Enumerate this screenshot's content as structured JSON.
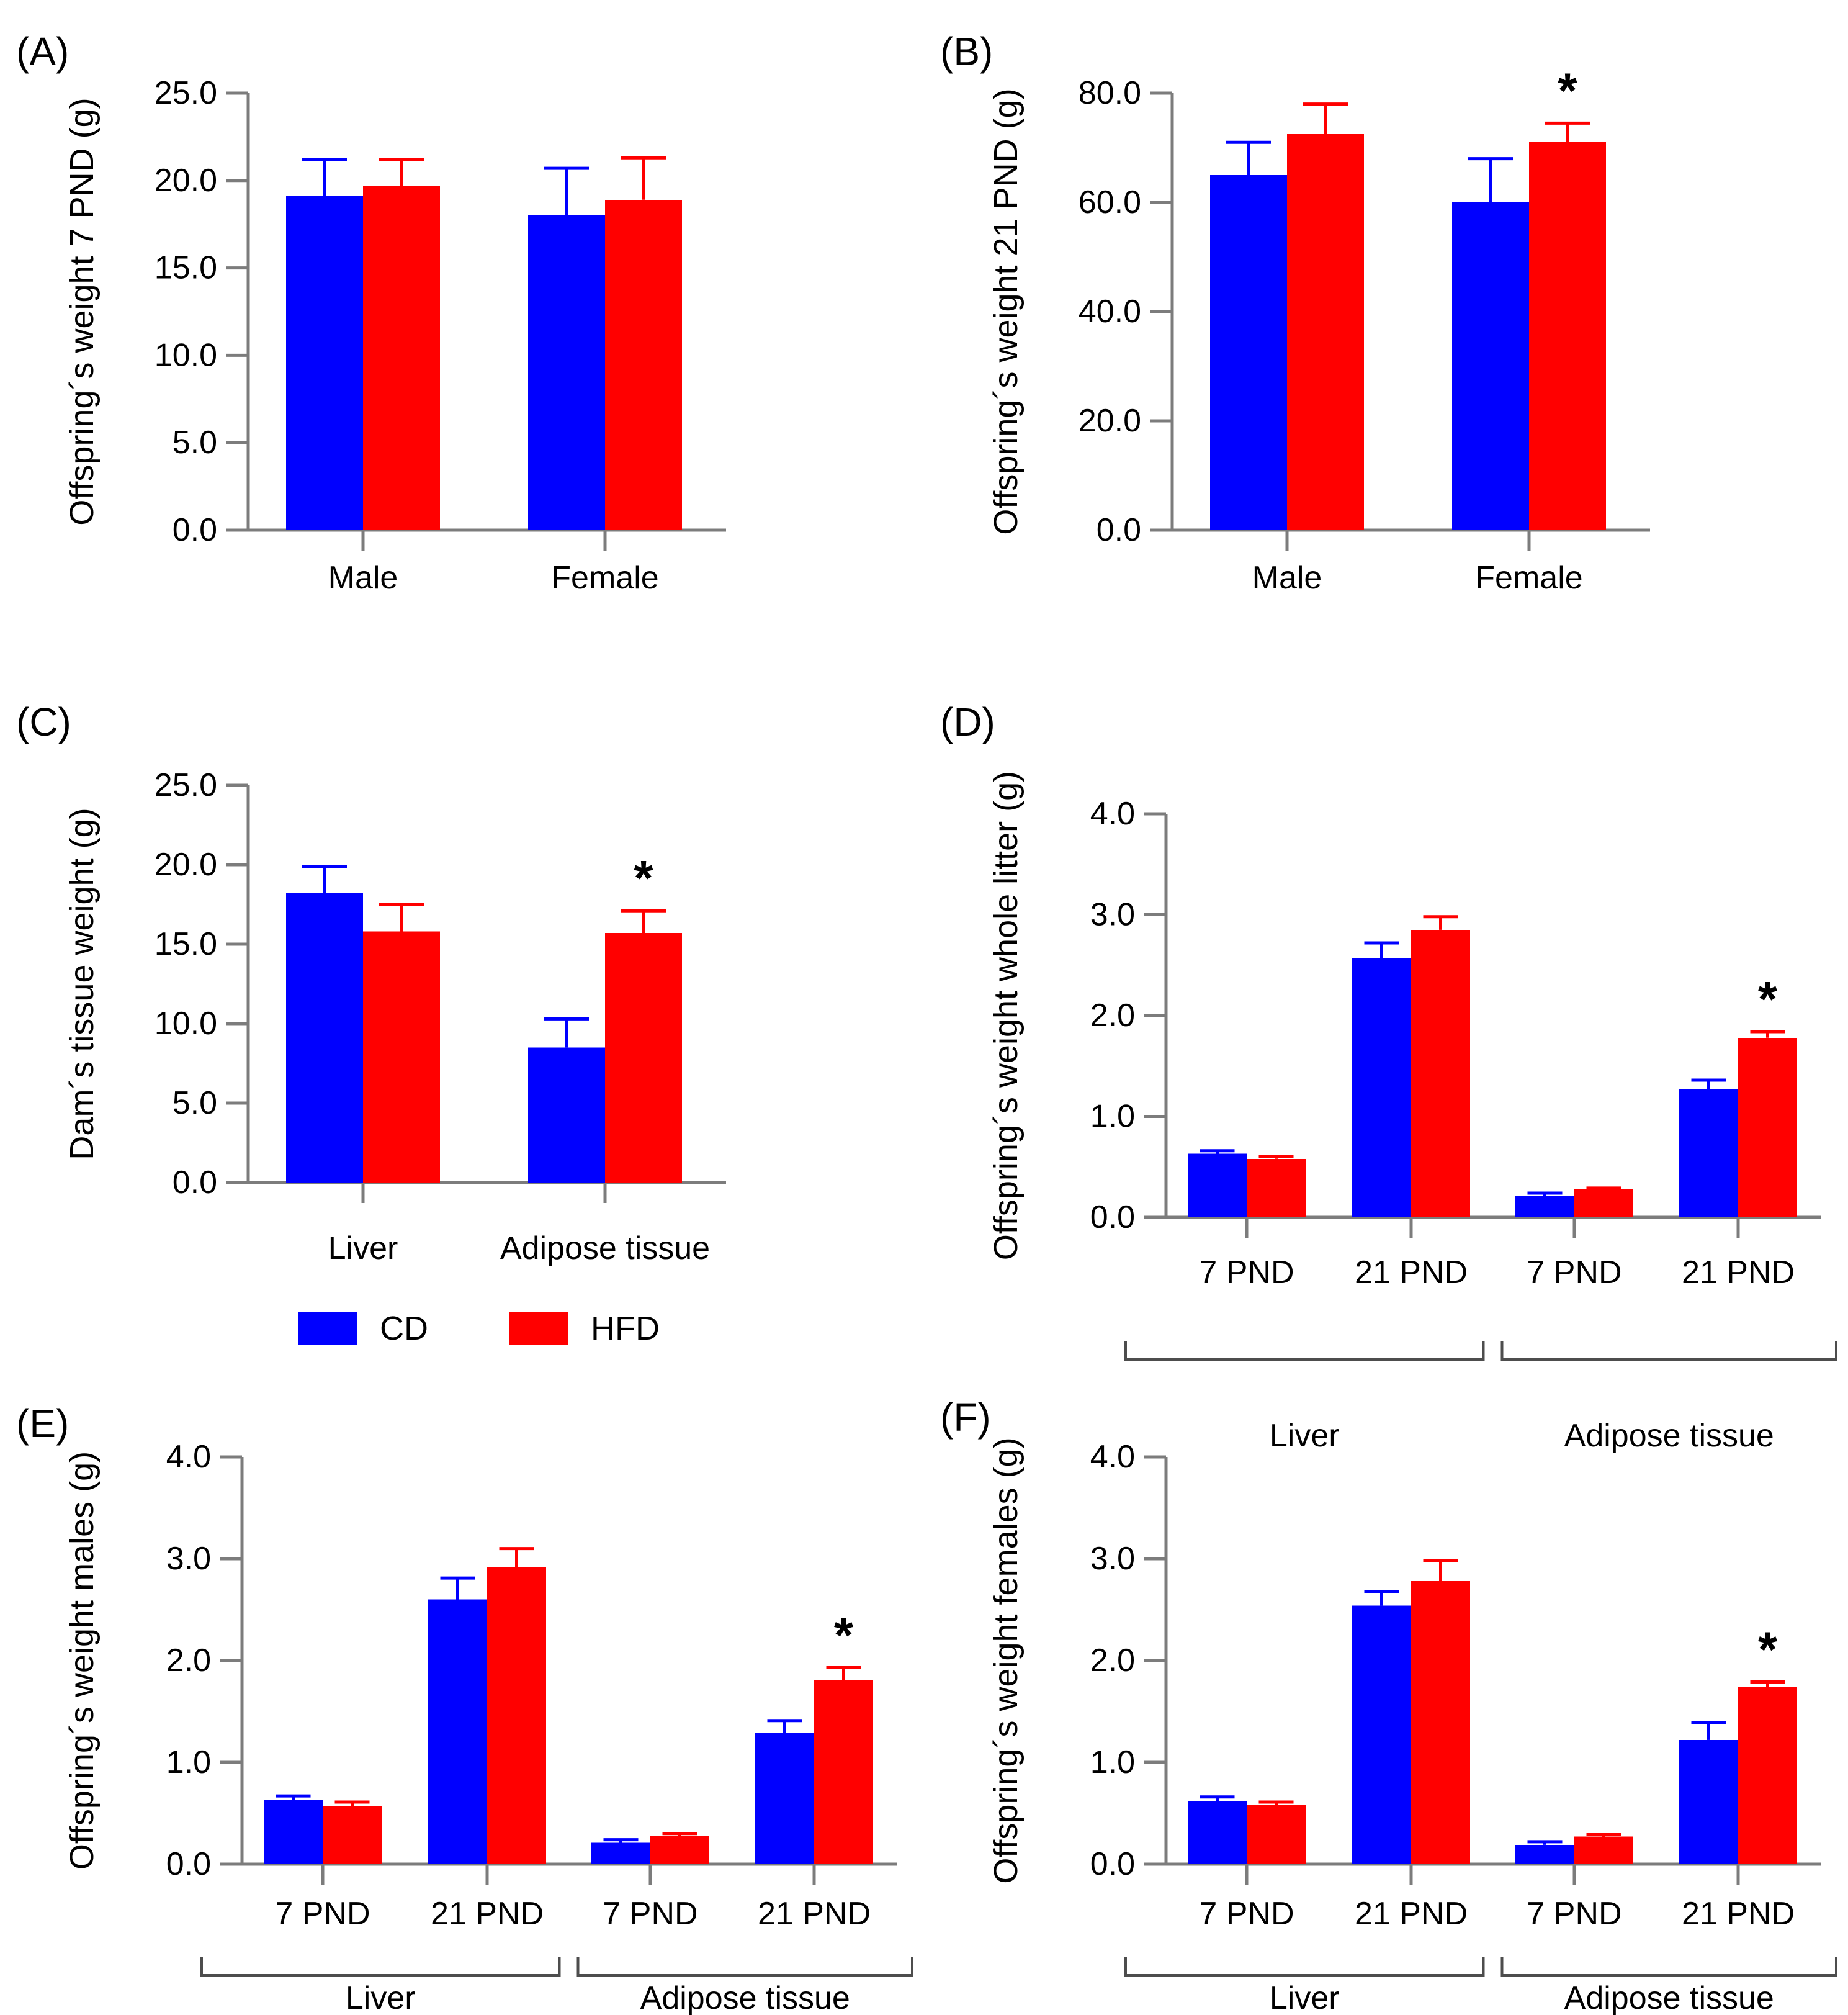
{
  "colors": {
    "cd_blue": "#0000ff",
    "hfd_red": "#ff0000",
    "axis_gray": "#7c7c7c",
    "bracket_gray": "#4d4d4d",
    "text_black": "#000000"
  },
  "significance_marker": "*",
  "legend": {
    "items": [
      {
        "label": "CD",
        "color": "#0000ff"
      },
      {
        "label": "HFD",
        "color": "#ff0000"
      }
    ]
  },
  "chart_data": [
    {
      "type": "bar",
      "panel_label": "(A)",
      "ylabel": "Offspring´s weight 7 PND (g)",
      "xlabel": "",
      "ylim": [
        0,
        25
      ],
      "yticks": {
        "values": [
          0,
          5,
          10,
          15,
          20,
          25
        ],
        "labels": [
          "0.0",
          "5.0",
          "10.0",
          "15.0",
          "20.0",
          "25.0"
        ]
      },
      "categories": [
        "Male",
        "Female"
      ],
      "series": [
        {
          "name": "CD",
          "color": "#0000ff",
          "values": [
            19.1,
            18.0
          ],
          "errors": [
            2.1,
            2.7
          ]
        },
        {
          "name": "HFD",
          "color": "#ff0000",
          "values": [
            19.7,
            18.9
          ],
          "errors": [
            1.5,
            2.4
          ]
        }
      ],
      "asterisks": [],
      "group_brackets": [],
      "show_legend": false,
      "grid": false,
      "legend_position": "none"
    },
    {
      "type": "bar",
      "panel_label": "(B)",
      "ylabel": "Offspring´s weight 21 PND (g)",
      "xlabel": "",
      "ylim": [
        0,
        80
      ],
      "yticks": {
        "values": [
          0,
          20,
          40,
          60,
          80
        ],
        "labels": [
          "0.0",
          "20.0",
          "40.0",
          "60.0",
          "80.0"
        ]
      },
      "categories": [
        "Male",
        "Female"
      ],
      "series": [
        {
          "name": "CD",
          "color": "#0000ff",
          "values": [
            65.0,
            60.0
          ],
          "errors": [
            6.0,
            8.0
          ]
        },
        {
          "name": "HFD",
          "color": "#ff0000",
          "values": [
            72.5,
            71.0
          ],
          "errors": [
            5.5,
            3.5
          ]
        }
      ],
      "asterisks": [
        {
          "series": 1,
          "category": 1
        }
      ],
      "group_brackets": [],
      "show_legend": false,
      "grid": false,
      "legend_position": "none"
    },
    {
      "type": "bar",
      "panel_label": "(C)",
      "ylabel": "Dam´s tissue weight (g)",
      "xlabel": "",
      "ylim": [
        0,
        25
      ],
      "yticks": {
        "values": [
          0,
          5,
          10,
          15,
          20,
          25
        ],
        "labels": [
          "0.0",
          "5.0",
          "10.0",
          "15.0",
          "20.0",
          "25.0"
        ]
      },
      "categories": [
        "Liver",
        "Adipose tissue"
      ],
      "series": [
        {
          "name": "CD",
          "color": "#0000ff",
          "values": [
            18.2,
            8.5
          ],
          "errors": [
            1.7,
            1.8
          ]
        },
        {
          "name": "HFD",
          "color": "#ff0000",
          "values": [
            15.8,
            15.7
          ],
          "errors": [
            1.7,
            1.4
          ]
        }
      ],
      "asterisks": [
        {
          "series": 1,
          "category": 1
        }
      ],
      "group_brackets": [],
      "show_legend": true,
      "grid": false,
      "legend_position": "bottom"
    },
    {
      "type": "bar",
      "panel_label": "(D)",
      "ylabel": "Offspring´s weight whole litter (g)",
      "xlabel": "",
      "ylim": [
        0,
        4
      ],
      "yticks": {
        "values": [
          0,
          1,
          2,
          3,
          4
        ],
        "labels": [
          "0.0",
          "1.0",
          "2.0",
          "3.0",
          "4.0"
        ]
      },
      "categories": [
        "7 PND",
        "21 PND",
        "7 PND",
        "21 PND"
      ],
      "series": [
        {
          "name": "CD",
          "color": "#0000ff",
          "values": [
            0.63,
            2.57,
            0.21,
            1.27
          ],
          "errors": [
            0.03,
            0.15,
            0.03,
            0.09
          ]
        },
        {
          "name": "HFD",
          "color": "#ff0000",
          "values": [
            0.58,
            2.85,
            0.28,
            1.78
          ],
          "errors": [
            0.02,
            0.13,
            0.01,
            0.06
          ]
        }
      ],
      "asterisks": [
        {
          "series": 1,
          "category": 3
        }
      ],
      "group_brackets": [
        {
          "label": "Liver",
          "from": 0,
          "to": 1
        },
        {
          "label": "Adipose tissue",
          "from": 2,
          "to": 3
        }
      ],
      "show_legend": false,
      "grid": false,
      "legend_position": "none"
    },
    {
      "type": "bar",
      "panel_label": "(E)",
      "ylabel": "Offspring´s weight males (g)",
      "xlabel": "",
      "ylim": [
        0,
        4
      ],
      "yticks": {
        "values": [
          0,
          1,
          2,
          3,
          4
        ],
        "labels": [
          "0.0",
          "1.0",
          "2.0",
          "3.0",
          "4.0"
        ]
      },
      "categories": [
        "7 PND",
        "21 PND",
        "7 PND",
        "21 PND"
      ],
      "series": [
        {
          "name": "CD",
          "color": "#0000ff",
          "values": [
            0.63,
            2.6,
            0.21,
            1.29
          ],
          "errors": [
            0.04,
            0.21,
            0.03,
            0.12
          ]
        },
        {
          "name": "HFD",
          "color": "#ff0000",
          "values": [
            0.57,
            2.92,
            0.28,
            1.81
          ],
          "errors": [
            0.04,
            0.18,
            0.02,
            0.12
          ]
        }
      ],
      "asterisks": [
        {
          "series": 1,
          "category": 3
        }
      ],
      "group_brackets": [
        {
          "label": "Liver",
          "from": 0,
          "to": 1
        },
        {
          "label": "Adipose tissue",
          "from": 2,
          "to": 3
        }
      ],
      "show_legend": false,
      "grid": false,
      "legend_position": "none"
    },
    {
      "type": "bar",
      "panel_label": "(F)",
      "ylabel": "Offspring´s weight females (g)",
      "xlabel": "",
      "ylim": [
        0,
        4
      ],
      "yticks": {
        "values": [
          0,
          1,
          2,
          3,
          4
        ],
        "labels": [
          "0.0",
          "1.0",
          "2.0",
          "3.0",
          "4.0"
        ]
      },
      "categories": [
        "7 PND",
        "21 PND",
        "7 PND",
        "21 PND"
      ],
      "series": [
        {
          "name": "CD",
          "color": "#0000ff",
          "values": [
            0.62,
            2.54,
            0.19,
            1.22
          ],
          "errors": [
            0.04,
            0.14,
            0.03,
            0.17
          ]
        },
        {
          "name": "HFD",
          "color": "#ff0000",
          "values": [
            0.58,
            2.78,
            0.27,
            1.74
          ],
          "errors": [
            0.03,
            0.2,
            0.02,
            0.05
          ]
        }
      ],
      "asterisks": [
        {
          "series": 1,
          "category": 3
        }
      ],
      "group_brackets": [
        {
          "label": "Liver",
          "from": 0,
          "to": 1
        },
        {
          "label": "Adipose tissue",
          "from": 2,
          "to": 3
        }
      ],
      "show_legend": false,
      "grid": false,
      "legend_position": "none"
    }
  ]
}
